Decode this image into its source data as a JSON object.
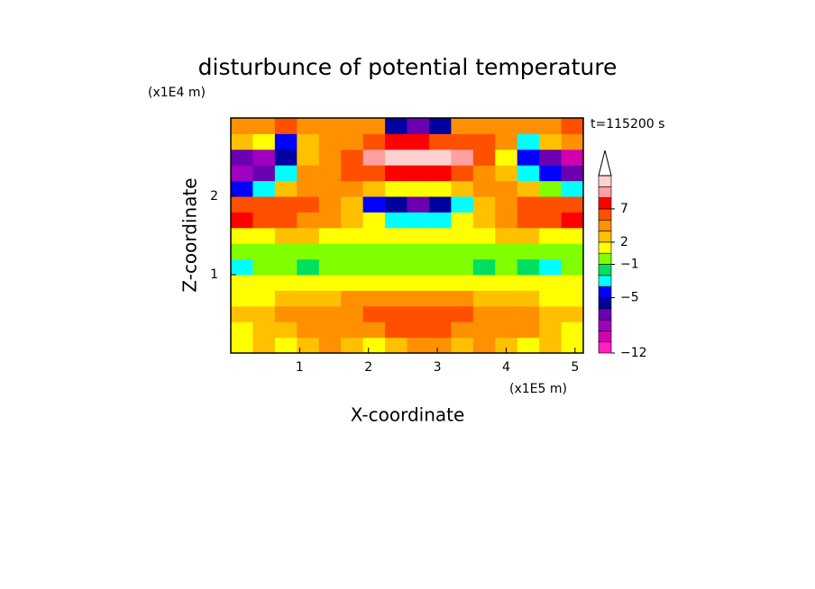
{
  "chart_data": {
    "type": "contour",
    "title": "disturbunce of potential temperature",
    "y_unit": "(x1E4 m)",
    "x_unit": "(x1E5 m)",
    "time_label": "t=115200 s",
    "xlabel": "X-coordinate",
    "ylabel": "Z-coordinate",
    "xlim": [
      0,
      5.12
    ],
    "ylim": [
      0,
      3
    ],
    "xticks": [
      1,
      2,
      3,
      4,
      5
    ],
    "yticks": [
      1,
      2
    ],
    "x": [
      0.16,
      0.48,
      0.8,
      1.12,
      1.44,
      1.76,
      2.08,
      2.4,
      2.72,
      3.04,
      3.36,
      3.68,
      4.0,
      4.32,
      4.64,
      4.96
    ],
    "z": [
      0.1,
      0.3,
      0.5,
      0.7,
      0.9,
      1.1,
      1.3,
      1.5,
      1.7,
      1.9,
      2.1,
      2.3,
      2.5,
      2.7,
      2.9
    ],
    "values": [
      [
        1,
        2,
        1,
        2,
        3,
        2,
        1,
        2,
        3,
        3,
        2,
        3,
        2,
        1,
        2,
        1
      ],
      [
        1,
        2,
        2,
        3,
        3,
        3,
        4,
        5,
        5,
        5,
        4,
        4,
        3,
        3,
        2,
        1
      ],
      [
        2,
        2,
        3,
        3,
        3,
        4,
        5,
        5,
        6,
        5,
        5,
        4,
        3,
        3,
        2,
        2
      ],
      [
        1,
        1,
        2,
        2,
        2,
        3,
        3,
        3,
        3,
        3,
        3,
        2,
        2,
        2,
        1,
        1
      ],
      [
        0.5,
        0.5,
        1,
        1,
        1,
        1,
        1,
        1,
        1,
        1,
        1,
        1,
        1,
        0.5,
        0.5,
        0.5
      ],
      [
        -3,
        -1,
        -1,
        -2,
        -1,
        -0.5,
        -0.5,
        -0.5,
        -1,
        -0.5,
        -0.5,
        -2,
        -1,
        -2,
        -3,
        -1
      ],
      [
        -0.5,
        -0.5,
        -0.5,
        -0.5,
        -0.5,
        -0.5,
        -0.5,
        -0.5,
        -0.5,
        -0.5,
        -0.5,
        -0.5,
        -0.5,
        -0.5,
        -0.5,
        -0.5
      ],
      [
        1,
        1,
        2,
        2,
        1,
        1,
        0.5,
        0.5,
        0.5,
        1,
        1,
        1,
        2,
        2,
        1,
        1
      ],
      [
        7,
        6,
        5,
        4,
        3,
        2,
        0.5,
        -3,
        -4,
        -3,
        0.5,
        2,
        3,
        5,
        6,
        7
      ],
      [
        5,
        6,
        6,
        5,
        4,
        2,
        -5,
        -6,
        -7,
        -6,
        -4,
        2,
        4,
        5,
        6,
        5
      ],
      [
        -5,
        -3,
        2,
        3,
        4,
        3,
        2,
        1,
        0.5,
        1,
        2,
        3,
        3,
        2,
        -1,
        -4
      ],
      [
        -8,
        -7,
        -4,
        3,
        4,
        5,
        6,
        7,
        7,
        7,
        5,
        4,
        2,
        -3,
        -5,
        -7
      ],
      [
        -7,
        -8,
        -6,
        2,
        3,
        5,
        8,
        9,
        10,
        9,
        8,
        5,
        1,
        -5,
        -7,
        -9
      ],
      [
        2,
        1,
        -5,
        2,
        4,
        4,
        6,
        7,
        7,
        6,
        5,
        5,
        3,
        -3,
        2,
        3
      ],
      [
        3,
        4,
        5,
        3,
        4,
        4,
        3,
        -6,
        -7,
        -6,
        3,
        4,
        4,
        3,
        4,
        5
      ]
    ],
    "levels": [
      -12,
      -10,
      -8,
      -7,
      -6,
      -5,
      -4,
      -2,
      -1,
      0,
      2,
      3,
      5,
      7,
      8,
      9,
      11
    ],
    "colors": [
      "#ff20c0",
      "#d000b0",
      "#a000c0",
      "#6a00b0",
      "#0000a0",
      "#0000ff",
      "#00ffff",
      "#00e060",
      "#80ff00",
      "#ffff00",
      "#ffc000",
      "#ff9000",
      "#ff5000",
      "#ff0000",
      "#ffa0a0",
      "#ffd0d0"
    ],
    "colorbar_ticks": [
      {
        "value": -12,
        "label": "−12"
      },
      {
        "value": -5,
        "label": "−5"
      },
      {
        "value": -1,
        "label": "−1"
      },
      2,
      7
    ]
  }
}
